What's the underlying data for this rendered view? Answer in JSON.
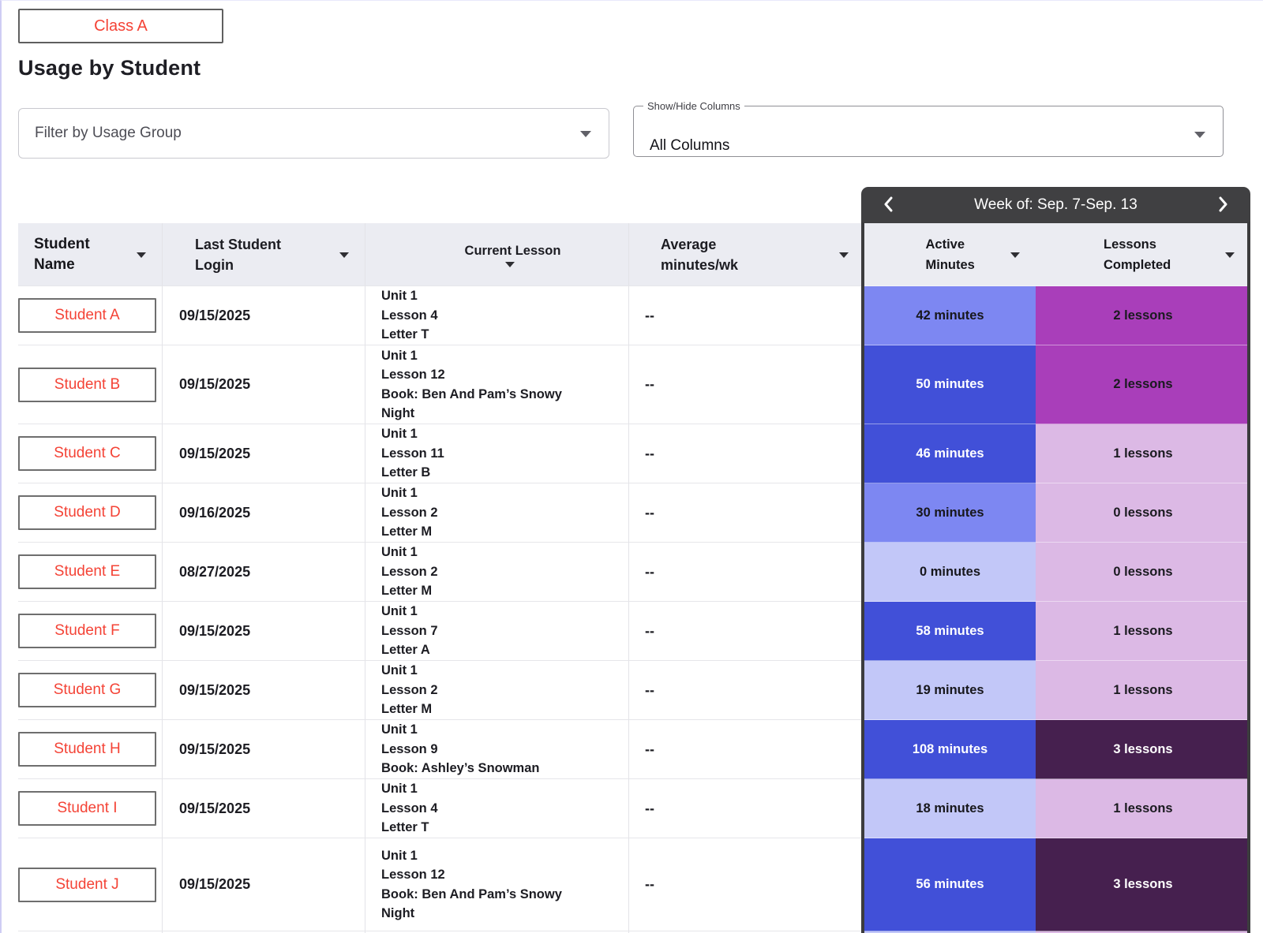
{
  "page": {
    "class_button": "Class A",
    "title": "Usage by Student",
    "filter_placeholder": "Filter by Usage Group",
    "columns_select": {
      "label": "Show/Hide Columns",
      "value": "All Columns"
    },
    "week_nav": {
      "title": "Week of: Sep. 7-Sep. 13",
      "prev_icon": "chevron-left",
      "next_icon": "chevron-right"
    }
  },
  "palette": {
    "accent_red": "#f44336",
    "week_bar": "#404042",
    "header_bg": "#ebecf2",
    "minutes_strong": "#4150d8",
    "minutes_mid": "#7d87f2",
    "minutes_light": "#c2c7f8",
    "lessons_strong": "#a93eba",
    "lessons_light": "#dcb9e5",
    "lessons_dark": "#46204f"
  },
  "table": {
    "headers": [
      "Student Name",
      "Last Student Login",
      "Current Lesson",
      "Average minutes/wk",
      "Active Minutes",
      "Lessons Completed"
    ],
    "rows": [
      {
        "name": "Student A",
        "login": "09/15/2025",
        "lesson": [
          "Unit 1",
          "Lesson 4",
          "Letter T"
        ],
        "avg": "--",
        "minutes": "42 minutes",
        "minutes_shade": "mid",
        "lessons": "2 lessons",
        "lessons_shade": "strong"
      },
      {
        "name": "Student B",
        "login": "09/15/2025",
        "lesson": [
          "Unit 1",
          "Lesson 12",
          "Book: Ben And Pam’s Snowy",
          "Night"
        ],
        "avg": "--",
        "minutes": "50 minutes",
        "minutes_shade": "strong",
        "lessons": "2 lessons",
        "lessons_shade": "strong"
      },
      {
        "name": "Student C",
        "login": "09/15/2025",
        "lesson": [
          "Unit 1",
          "Lesson 11",
          "Letter B"
        ],
        "avg": "--",
        "minutes": "46 minutes",
        "minutes_shade": "strong",
        "lessons": "1 lessons",
        "lessons_shade": "light"
      },
      {
        "name": "Student D",
        "login": "09/16/2025",
        "lesson": [
          "Unit 1",
          "Lesson 2",
          "Letter M"
        ],
        "avg": "--",
        "minutes": "30 minutes",
        "minutes_shade": "mid",
        "lessons": "0 lessons",
        "lessons_shade": "light"
      },
      {
        "name": "Student E",
        "login": "08/27/2025",
        "lesson": [
          "Unit 1",
          "Lesson 2",
          "Letter M"
        ],
        "avg": "--",
        "minutes": "0 minutes",
        "minutes_shade": "light",
        "lessons": "0 lessons",
        "lessons_shade": "light"
      },
      {
        "name": "Student F",
        "login": "09/15/2025",
        "lesson": [
          "Unit 1",
          "Lesson 7",
          "Letter A"
        ],
        "avg": "--",
        "minutes": "58 minutes",
        "minutes_shade": "strong",
        "lessons": "1 lessons",
        "lessons_shade": "light"
      },
      {
        "name": "Student G",
        "login": "09/15/2025",
        "lesson": [
          "Unit 1",
          "Lesson 2",
          "Letter M"
        ],
        "avg": "--",
        "minutes": "19 minutes",
        "minutes_shade": "light",
        "lessons": "1 lessons",
        "lessons_shade": "light"
      },
      {
        "name": "Student H",
        "login": "09/15/2025",
        "lesson": [
          "Unit 1",
          "Lesson 9",
          "Book: Ashley’s Snowman"
        ],
        "avg": "--",
        "minutes": "108 minutes",
        "minutes_shade": "strong",
        "lessons": "3 lessons",
        "lessons_shade": "dark"
      },
      {
        "name": "Student I",
        "login": "09/15/2025",
        "lesson": [
          "Unit 1",
          "Lesson 4",
          "Letter T"
        ],
        "avg": "--",
        "minutes": "18 minutes",
        "minutes_shade": "light",
        "lessons": "1 lessons",
        "lessons_shade": "light"
      },
      {
        "name": "Student J",
        "login": "09/15/2025",
        "lesson": [
          "Unit 1",
          "Lesson 12",
          "Book: Ben And Pam’s Snowy",
          "Night"
        ],
        "avg": "--",
        "minutes": "56 minutes",
        "minutes_shade": "strong",
        "lessons": "3 lessons",
        "lessons_shade": "dark"
      }
    ]
  }
}
